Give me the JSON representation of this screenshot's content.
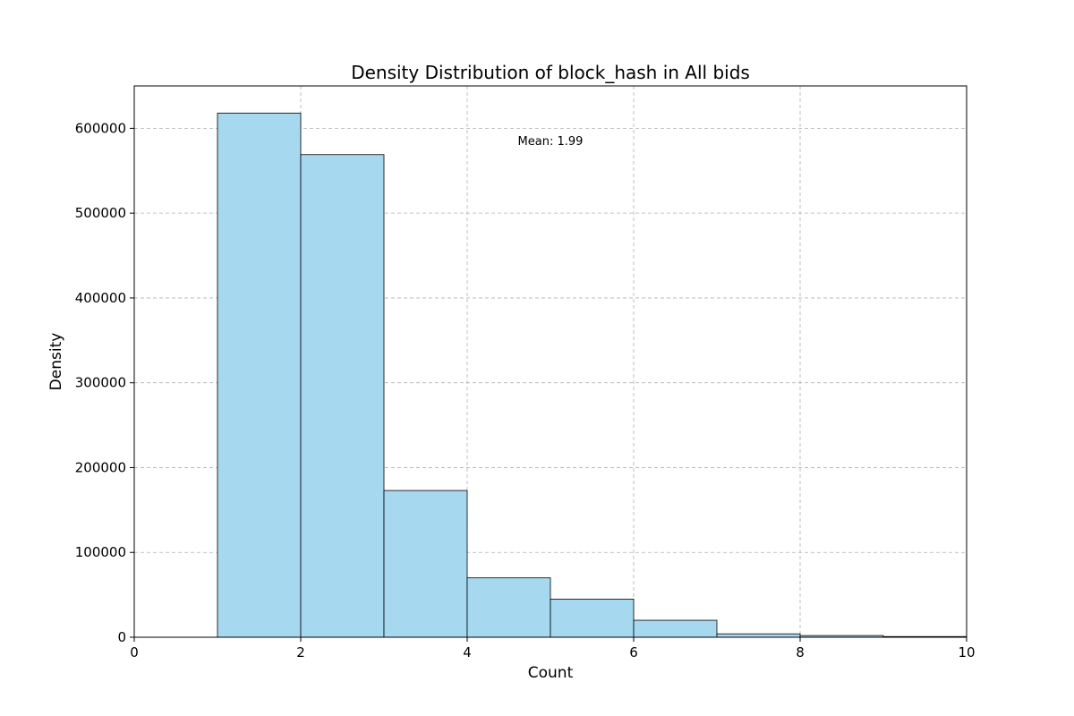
{
  "chart_data": {
    "type": "bar",
    "title": "Density Distribution of block_hash in All bids",
    "xlabel": "Count",
    "ylabel": "Density",
    "xlim": [
      0,
      10
    ],
    "ylim": [
      0,
      650000
    ],
    "xticks": [
      0,
      2,
      4,
      6,
      8,
      10
    ],
    "yticks": [
      0,
      100000,
      200000,
      300000,
      400000,
      500000,
      600000
    ],
    "grid": true,
    "bar_color": "#a6d9ef",
    "edge_color": "#000000",
    "bins": [
      {
        "x0": 1,
        "x1": 2,
        "value": 618000
      },
      {
        "x0": 2,
        "x1": 3,
        "value": 569000
      },
      {
        "x0": 3,
        "x1": 4,
        "value": 173000
      },
      {
        "x0": 4,
        "x1": 5,
        "value": 70000
      },
      {
        "x0": 5,
        "x1": 6,
        "value": 45000
      },
      {
        "x0": 6,
        "x1": 7,
        "value": 20000
      },
      {
        "x0": 7,
        "x1": 8,
        "value": 4000
      },
      {
        "x0": 8,
        "x1": 9,
        "value": 2000
      },
      {
        "x0": 9,
        "x1": 10,
        "value": 800
      }
    ],
    "annotation": "Mean: 1.99"
  }
}
